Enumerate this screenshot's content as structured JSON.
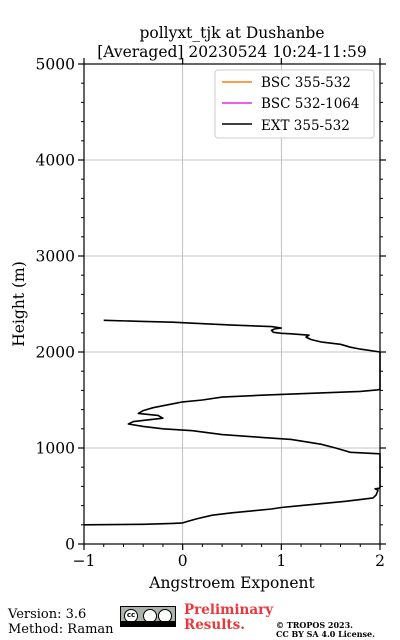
{
  "chart_data": {
    "type": "line",
    "title_line1": "pollyxt_tjk at Dushanbe",
    "title_line2": "[Averaged] 20230524 10:24-11:59",
    "xlabel": "Angstroem Exponent",
    "ylabel": "Height (m)",
    "xlim": [
      -1,
      2
    ],
    "ylim": [
      0,
      5000
    ],
    "x_ticks": [
      -1,
      0,
      1,
      2
    ],
    "x_tick_labels": [
      "−1",
      "0",
      "1",
      "2"
    ],
    "y_ticks": [
      0,
      1000,
      2000,
      3000,
      4000,
      5000
    ],
    "y_tick_labels": [
      "0",
      "1000",
      "2000",
      "3000",
      "4000",
      "5000"
    ],
    "grid": true,
    "legend_position": "top-right",
    "series": [
      {
        "name": "BSC 355-532",
        "color": "#ff7f0e",
        "points": []
      },
      {
        "name": "BSC 532-1064",
        "color": "#e42ce6",
        "points": []
      },
      {
        "name": "EXT 355-532",
        "color": "#000000",
        "points": [
          [
            -1.0,
            200
          ],
          [
            -0.4,
            205
          ],
          [
            -0.1,
            215
          ],
          [
            0.0,
            220
          ],
          [
            0.05,
            235
          ],
          [
            0.15,
            265
          ],
          [
            0.3,
            300
          ],
          [
            0.5,
            325
          ],
          [
            0.7,
            345
          ],
          [
            0.9,
            365
          ],
          [
            1.0,
            380
          ],
          [
            1.2,
            400
          ],
          [
            1.4,
            420
          ],
          [
            1.65,
            445
          ],
          [
            1.85,
            470
          ],
          [
            1.93,
            480
          ],
          [
            1.96,
            510
          ],
          [
            1.98,
            560
          ],
          [
            1.95,
            575
          ],
          [
            1.99,
            580
          ],
          [
            2.0,
            590
          ],
          [
            2.0,
            900
          ],
          [
            2.0,
            940
          ],
          [
            1.7,
            955
          ],
          [
            1.65,
            970
          ],
          [
            1.55,
            1000
          ],
          [
            1.4,
            1040
          ],
          [
            1.1,
            1090
          ],
          [
            0.8,
            1110
          ],
          [
            0.4,
            1140
          ],
          [
            0.1,
            1180
          ],
          [
            -0.2,
            1200
          ],
          [
            -0.4,
            1225
          ],
          [
            -0.55,
            1250
          ],
          [
            -0.5,
            1275
          ],
          [
            -0.2,
            1310
          ],
          [
            -0.25,
            1340
          ],
          [
            -0.45,
            1360
          ],
          [
            -0.4,
            1390
          ],
          [
            -0.3,
            1420
          ],
          [
            -0.1,
            1460
          ],
          [
            0.0,
            1480
          ],
          [
            0.2,
            1500
          ],
          [
            0.4,
            1530
          ],
          [
            0.8,
            1550
          ],
          [
            1.3,
            1570
          ],
          [
            1.8,
            1590
          ],
          [
            1.97,
            1605
          ],
          [
            2.0,
            1610
          ],
          [
            2.0,
            2000
          ],
          [
            1.8,
            2030
          ],
          [
            1.7,
            2050
          ],
          [
            1.6,
            2080
          ],
          [
            1.4,
            2105
          ],
          [
            1.3,
            2130
          ],
          [
            1.25,
            2155
          ],
          [
            1.28,
            2175
          ],
          [
            1.1,
            2190
          ],
          [
            1.0,
            2195
          ],
          [
            0.92,
            2205
          ],
          [
            0.9,
            2225
          ],
          [
            0.93,
            2240
          ],
          [
            1.0,
            2250
          ],
          [
            0.9,
            2265
          ],
          [
            0.5,
            2280
          ],
          [
            0.1,
            2300
          ],
          [
            -0.1,
            2310
          ],
          [
            -0.45,
            2320
          ],
          [
            -0.8,
            2330
          ]
        ]
      }
    ]
  },
  "footer": {
    "version": "Version: 3.6",
    "method": "Method: Raman",
    "preliminary_line1": "Preliminary",
    "preliminary_line2": "Results.",
    "copyright": "© TROPOS 2023.",
    "license": "CC BY SA 4.0 License.",
    "cc_badge_text": "cc"
  }
}
